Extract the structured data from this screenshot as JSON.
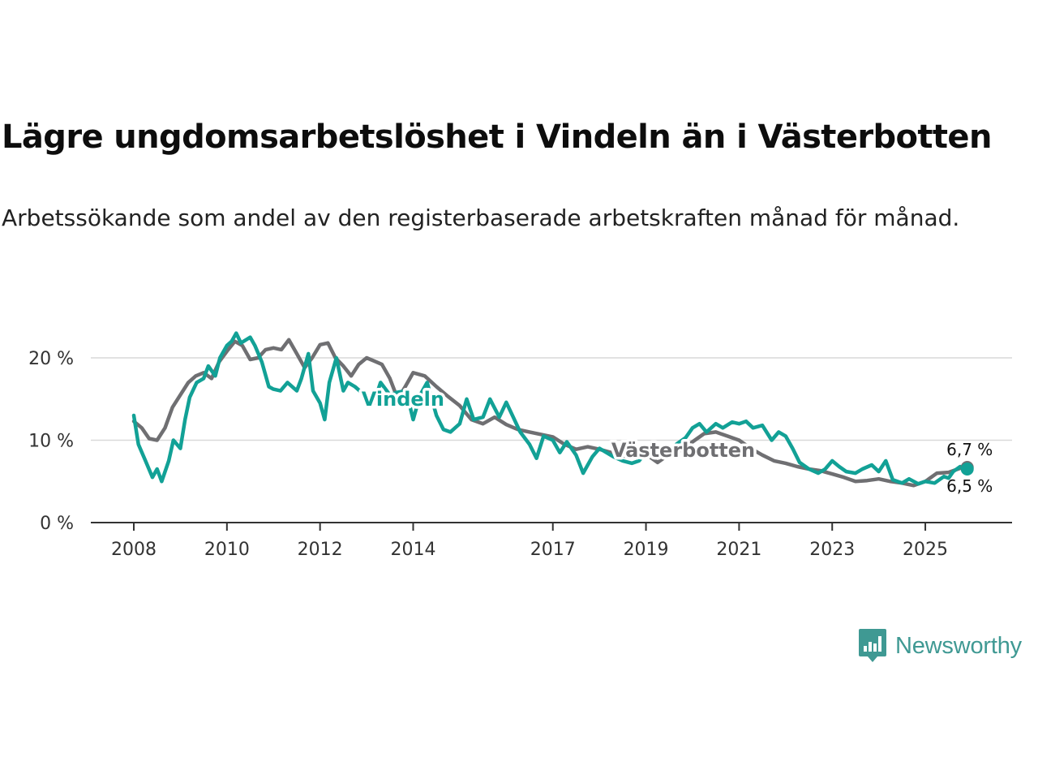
{
  "colors": {
    "vindeln": "#12a196",
    "vasterbotten": "#6f6f72",
    "grid": "#d9d9d9",
    "axis": "#333333",
    "brand": "#3f9993"
  },
  "brand": {
    "name": "Newsworthy",
    "icon": "bar-chart-bubble-icon"
  },
  "chart_data": {
    "type": "line",
    "title": "Lägre ungdomsarbetslöshet i Vindeln än i Västerbotten",
    "subtitle": "Arbetssökande som andel av den registerbaserade arbetskraften månad för månad.",
    "xlabel": "",
    "ylabel": "",
    "xlim": [
      2008.0,
      2025.95
    ],
    "ylim": [
      0,
      25
    ],
    "xticks": [
      2008,
      2010,
      2012,
      2014,
      2017,
      2019,
      2021,
      2023,
      2025
    ],
    "xtick_labels": [
      "2008",
      "2010",
      "2012",
      "2014",
      "2017",
      "2019",
      "2021",
      "2023",
      "2025"
    ],
    "yticks": [
      0,
      10,
      20
    ],
    "ytick_labels": [
      "0 %",
      "10 %",
      "20 %"
    ],
    "grid": true,
    "series": [
      {
        "name": "Västerbotten",
        "label": "Västerbotten",
        "end_label": "6,7 %",
        "x": [
          2008.0,
          2008.17,
          2008.33,
          2008.5,
          2008.67,
          2008.83,
          2009.0,
          2009.17,
          2009.33,
          2009.5,
          2009.67,
          2009.83,
          2010.0,
          2010.17,
          2010.33,
          2010.5,
          2010.67,
          2010.83,
          2011.0,
          2011.17,
          2011.33,
          2011.5,
          2011.67,
          2011.83,
          2012.0,
          2012.17,
          2012.33,
          2012.5,
          2012.67,
          2012.83,
          2013.0,
          2013.17,
          2013.33,
          2013.5,
          2013.67,
          2013.83,
          2014.0,
          2014.25,
          2014.5,
          2014.75,
          2015.0,
          2015.25,
          2015.5,
          2015.75,
          2016.0,
          2016.25,
          2016.5,
          2016.75,
          2017.0,
          2017.25,
          2017.5,
          2017.75,
          2018.0,
          2018.25,
          2018.5,
          2018.75,
          2019.0,
          2019.25,
          2019.5,
          2019.75,
          2020.0,
          2020.25,
          2020.5,
          2020.75,
          2021.0,
          2021.25,
          2021.5,
          2021.75,
          2022.0,
          2022.25,
          2022.5,
          2022.75,
          2023.0,
          2023.25,
          2023.5,
          2023.75,
          2024.0,
          2024.25,
          2024.5,
          2024.75,
          2025.0,
          2025.25,
          2025.5,
          2025.75,
          2025.9
        ],
        "y": [
          12.3,
          11.5,
          10.2,
          10.0,
          11.5,
          14.0,
          15.5,
          17.0,
          17.8,
          18.2,
          17.5,
          19.5,
          20.8,
          22.0,
          21.5,
          19.8,
          20.0,
          21.0,
          21.2,
          21.0,
          22.2,
          20.5,
          18.8,
          20.0,
          21.6,
          21.8,
          20.0,
          19.0,
          17.8,
          19.2,
          20.0,
          19.6,
          19.2,
          17.5,
          15.0,
          16.5,
          18.2,
          17.8,
          16.5,
          15.3,
          14.2,
          12.5,
          12.0,
          12.8,
          11.9,
          11.3,
          11.0,
          10.7,
          10.4,
          9.5,
          8.9,
          9.2,
          8.9,
          8.5,
          8.1,
          7.9,
          8.3,
          7.3,
          8.3,
          8.8,
          9.8,
          10.8,
          11.0,
          10.5,
          10.0,
          9.0,
          8.2,
          7.5,
          7.2,
          6.8,
          6.5,
          6.3,
          5.9,
          5.5,
          5.0,
          5.1,
          5.3,
          5.0,
          4.8,
          4.5,
          5.0,
          6.0,
          6.1,
          6.6,
          6.7
        ]
      },
      {
        "name": "Vindeln",
        "label": "Vindeln",
        "end_label": "6,5 %",
        "x": [
          2008.0,
          2008.1,
          2008.25,
          2008.4,
          2008.5,
          2008.6,
          2008.75,
          2008.85,
          2009.0,
          2009.1,
          2009.2,
          2009.35,
          2009.5,
          2009.6,
          2009.75,
          2009.85,
          2010.0,
          2010.1,
          2010.2,
          2010.3,
          2010.5,
          2010.6,
          2010.75,
          2010.9,
          2011.0,
          2011.15,
          2011.3,
          2011.5,
          2011.6,
          2011.75,
          2011.85,
          2012.0,
          2012.1,
          2012.2,
          2012.35,
          2012.5,
          2012.6,
          2012.75,
          2012.85,
          2013.0,
          2013.15,
          2013.3,
          2013.5,
          2013.65,
          2013.85,
          2014.0,
          2014.15,
          2014.3,
          2014.5,
          2014.65,
          2014.8,
          2015.0,
          2015.15,
          2015.3,
          2015.5,
          2015.65,
          2015.85,
          2016.0,
          2016.15,
          2016.3,
          2016.5,
          2016.65,
          2016.8,
          2017.0,
          2017.15,
          2017.3,
          2017.5,
          2017.65,
          2017.85,
          2018.0,
          2018.15,
          2018.3,
          2018.5,
          2018.7,
          2018.85,
          2019.0,
          2019.15,
          2019.3,
          2019.5,
          2019.65,
          2019.85,
          2020.0,
          2020.15,
          2020.3,
          2020.5,
          2020.65,
          2020.85,
          2021.0,
          2021.15,
          2021.3,
          2021.5,
          2021.7,
          2021.85,
          2022.0,
          2022.15,
          2022.3,
          2022.5,
          2022.7,
          2022.85,
          2023.0,
          2023.15,
          2023.3,
          2023.5,
          2023.65,
          2023.85,
          2024.0,
          2024.15,
          2024.3,
          2024.5,
          2024.65,
          2024.85,
          2025.0,
          2025.2,
          2025.4,
          2025.5,
          2025.6,
          2025.75,
          2025.9
        ],
        "y": [
          13.0,
          9.5,
          7.5,
          5.5,
          6.5,
          5.0,
          7.5,
          10.0,
          9.0,
          12.5,
          15.2,
          17.0,
          17.5,
          19.0,
          17.8,
          20.0,
          21.5,
          22.0,
          23.0,
          21.8,
          22.5,
          21.5,
          19.5,
          16.5,
          16.2,
          16.0,
          17.0,
          16.0,
          17.5,
          20.5,
          16.0,
          14.5,
          12.5,
          17.0,
          20.0,
          16.0,
          17.0,
          16.5,
          16.0,
          15.0,
          14.5,
          17.0,
          15.5,
          15.8,
          16.0,
          12.5,
          15.5,
          17.0,
          13.0,
          11.3,
          11.0,
          12.0,
          15.0,
          12.5,
          12.8,
          15.0,
          12.8,
          14.6,
          12.8,
          11.0,
          9.5,
          7.8,
          10.5,
          10.0,
          8.5,
          9.8,
          8.2,
          6.0,
          8.0,
          9.0,
          8.5,
          8.0,
          7.5,
          7.2,
          7.5,
          8.5,
          8.8,
          8.0,
          8.3,
          9.5,
          10.3,
          11.5,
          12.0,
          11.0,
          12.0,
          11.5,
          12.2,
          12.0,
          12.3,
          11.5,
          11.8,
          10.0,
          11.0,
          10.5,
          9.0,
          7.3,
          6.5,
          6.0,
          6.5,
          7.5,
          6.8,
          6.2,
          6.0,
          6.5,
          7.0,
          6.2,
          7.5,
          5.2,
          4.8,
          5.3,
          4.7,
          5.0,
          4.8,
          5.6,
          5.4,
          6.2,
          6.8,
          6.5
        ]
      }
    ]
  }
}
